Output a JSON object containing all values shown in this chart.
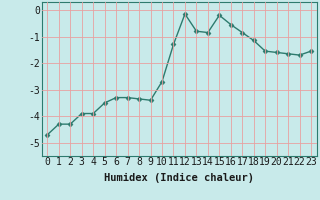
{
  "x": [
    0,
    1,
    2,
    3,
    4,
    5,
    6,
    7,
    8,
    9,
    10,
    11,
    12,
    13,
    14,
    15,
    16,
    17,
    18,
    19,
    20,
    21,
    22,
    23
  ],
  "y": [
    -4.7,
    -4.3,
    -4.3,
    -3.9,
    -3.9,
    -3.5,
    -3.3,
    -3.3,
    -3.35,
    -3.4,
    -2.7,
    -1.3,
    -0.15,
    -0.8,
    -0.85,
    -0.2,
    -0.55,
    -0.85,
    -1.15,
    -1.55,
    -1.6,
    -1.65,
    -1.7,
    -1.55
  ],
  "line_color": "#2d7b6e",
  "marker": "D",
  "marker_size": 2.5,
  "bg_color": "#c8eaea",
  "grid_color": "#e8a0a0",
  "xlabel": "Humidex (Indice chaleur)",
  "xlim": [
    -0.5,
    23.5
  ],
  "ylim": [
    -5.5,
    0.3
  ],
  "yticks": [
    0,
    -1,
    -2,
    -3,
    -4,
    -5
  ],
  "xticks": [
    0,
    1,
    2,
    3,
    4,
    5,
    6,
    7,
    8,
    9,
    10,
    11,
    12,
    13,
    14,
    15,
    16,
    17,
    18,
    19,
    20,
    21,
    22,
    23
  ],
  "xlabel_fontsize": 7.5,
  "tick_fontsize": 7.0
}
